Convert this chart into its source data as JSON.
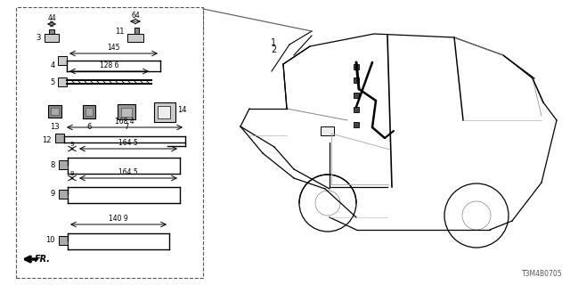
{
  "bg_color": "#ffffff",
  "line_color": "#000000",
  "diagram_id": "T3M4B0705"
}
